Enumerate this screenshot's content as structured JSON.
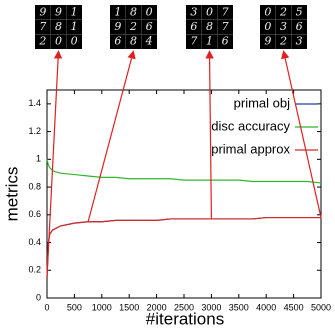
{
  "chart_data": {
    "type": "line",
    "xlabel": "#iterations",
    "ylabel": "metrics",
    "x": [
      0,
      25,
      50,
      100,
      150,
      250,
      500,
      750,
      1000,
      1250,
      1500,
      1750,
      2000,
      2250,
      2500,
      2750,
      3000,
      3250,
      3500,
      3750,
      4000,
      4250,
      4500,
      4750,
      5000
    ],
    "series": [
      {
        "name": "primal obj",
        "color": "#1f3fa8",
        "values": [
          0.15,
          0.4,
          0.46,
          0.49,
          0.5,
          0.52,
          0.54,
          0.55,
          0.55,
          0.56,
          0.56,
          0.56,
          0.56,
          0.57,
          0.57,
          0.57,
          0.57,
          0.57,
          0.57,
          0.57,
          0.58,
          0.58,
          0.58,
          0.58,
          0.58
        ]
      },
      {
        "name": "disc accuracy",
        "color": "#2eb82e",
        "values": [
          1.0,
          0.96,
          0.94,
          0.92,
          0.91,
          0.9,
          0.89,
          0.88,
          0.87,
          0.87,
          0.86,
          0.86,
          0.86,
          0.86,
          0.85,
          0.85,
          0.85,
          0.85,
          0.85,
          0.84,
          0.84,
          0.84,
          0.84,
          0.84,
          0.83
        ]
      },
      {
        "name": "primal approx",
        "color": "#d42a2a",
        "values": [
          0.15,
          0.4,
          0.46,
          0.49,
          0.5,
          0.52,
          0.54,
          0.55,
          0.55,
          0.56,
          0.56,
          0.56,
          0.56,
          0.57,
          0.57,
          0.57,
          0.57,
          0.57,
          0.57,
          0.57,
          0.58,
          0.58,
          0.58,
          0.58,
          0.58
        ]
      }
    ],
    "xlim": [
      0,
      5000
    ],
    "xticks": [
      0,
      500,
      1000,
      1500,
      2000,
      2500,
      3000,
      3500,
      4000,
      4500,
      5000
    ],
    "ylim": [
      0,
      1.5
    ],
    "yticks": [
      0,
      0.2,
      0.4,
      0.6,
      0.8,
      1,
      1.2,
      1.4
    ],
    "legend": "upper right",
    "images": [
      {
        "iteration": 0,
        "digits": [
          "9",
          "9",
          "1",
          "7",
          "8",
          "1",
          "2",
          "0",
          "0"
        ]
      },
      {
        "iteration": 750,
        "digits": [
          "1",
          "8",
          "0",
          "9",
          "2",
          "6",
          "6",
          "8",
          "4"
        ]
      },
      {
        "iteration": 3000,
        "digits": [
          "3",
          "0",
          "7",
          "6",
          "8",
          "7",
          "7",
          "1",
          "6"
        ]
      },
      {
        "iteration": 5000,
        "digits": [
          "0",
          "2",
          "5",
          "0",
          "3",
          "6",
          "9",
          "2",
          "3"
        ]
      }
    ]
  }
}
